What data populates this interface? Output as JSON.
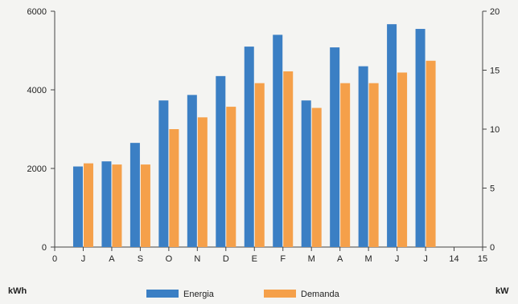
{
  "chart_data": {
    "type": "bar",
    "x_ticks": [
      "0",
      "J",
      "A",
      "S",
      "O",
      "N",
      "D",
      "E",
      "F",
      "M",
      "A",
      "M",
      "J",
      "J",
      "14",
      "15"
    ],
    "categories": [
      "J",
      "A",
      "S",
      "O",
      "N",
      "D",
      "E",
      "F",
      "M",
      "A",
      "M",
      "J",
      "J"
    ],
    "series": [
      {
        "name": "Energia",
        "axis": "left",
        "color": "#3b7fc4",
        "values": [
          2050,
          2180,
          2650,
          3730,
          3870,
          4350,
          5100,
          5400,
          3730,
          5080,
          4600,
          5670,
          5550
        ]
      },
      {
        "name": "Demanda",
        "axis": "right",
        "color": "#f5a04a",
        "values": [
          7.1,
          7.0,
          7.0,
          10.0,
          11.0,
          11.9,
          13.9,
          14.9,
          11.8,
          13.9,
          13.9,
          14.8,
          15.8
        ]
      }
    ],
    "left_axis": {
      "label": "kWh",
      "ylim": [
        0,
        6000
      ],
      "ticks": [
        0,
        2000,
        4000,
        6000
      ]
    },
    "right_axis": {
      "label": "kW",
      "ylim": [
        0,
        20
      ],
      "ticks": [
        0,
        5,
        10,
        15,
        20
      ]
    },
    "grid": false,
    "legend_position": "bottom-center"
  }
}
